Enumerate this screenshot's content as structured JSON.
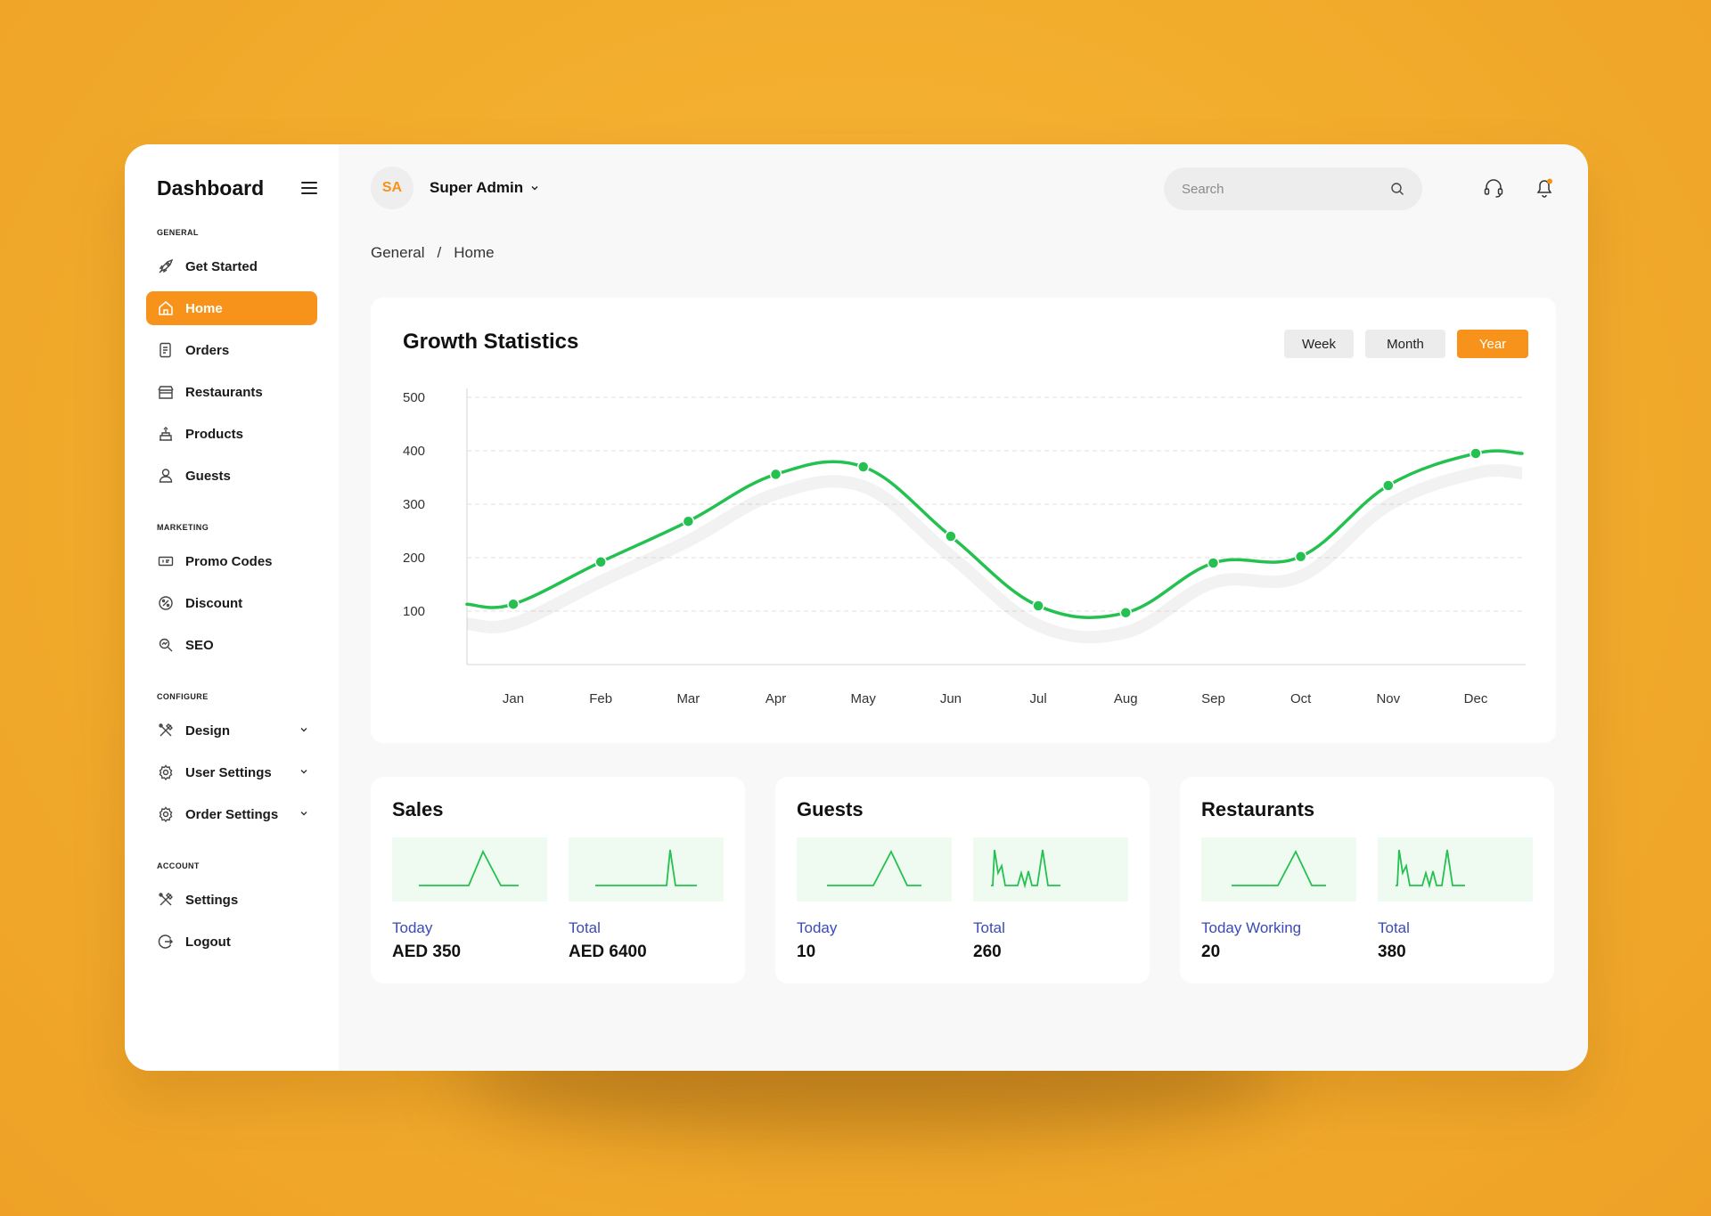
{
  "sidebar": {
    "title": "Dashboard",
    "sections": [
      {
        "label": "GENERAL",
        "items": [
          {
            "label": "Get Started",
            "icon": "rocket-icon"
          },
          {
            "label": "Home",
            "icon": "home-icon",
            "active": true
          },
          {
            "label": "Orders",
            "icon": "orders-icon"
          },
          {
            "label": "Restaurants",
            "icon": "store-icon"
          },
          {
            "label": "Products",
            "icon": "cake-icon"
          },
          {
            "label": "Guests",
            "icon": "user-icon"
          }
        ]
      },
      {
        "label": "MARKETING",
        "items": [
          {
            "label": "Promo Codes",
            "icon": "ticket-icon"
          },
          {
            "label": "Discount",
            "icon": "percent-icon"
          },
          {
            "label": "SEO",
            "icon": "seo-icon"
          }
        ]
      },
      {
        "label": "CONFIGURE",
        "items": [
          {
            "label": "Design",
            "icon": "tools-icon"
          },
          {
            "label": "User Settings",
            "icon": "gear-icon"
          },
          {
            "label": "Order Settings",
            "icon": "gear-icon"
          }
        ]
      },
      {
        "label": "ACCOUNT",
        "items": [
          {
            "label": "Settings",
            "icon": "tools-icon"
          },
          {
            "label": "Logout",
            "icon": "logout-icon"
          }
        ]
      }
    ]
  },
  "header": {
    "avatar_initials": "SA",
    "user_name": "Super Admin",
    "search_placeholder": "Search"
  },
  "breadcrumb": {
    "parent": "General",
    "separator": "/",
    "current": "Home"
  },
  "growth": {
    "title": "Growth Statistics",
    "periods": [
      "Week",
      "Month",
      "Year"
    ],
    "selected_period": "Year"
  },
  "chart_data": {
    "type": "line",
    "title": "Growth Statistics",
    "categories": [
      "Jan",
      "Feb",
      "Mar",
      "Apr",
      "May",
      "Jun",
      "Jul",
      "Aug",
      "Sep",
      "Oct",
      "Nov",
      "Dec"
    ],
    "values": [
      113,
      192,
      268,
      356,
      370,
      240,
      110,
      97,
      190,
      202,
      335,
      395
    ],
    "y_ticks": [
      100,
      200,
      300,
      400,
      500
    ],
    "ylim": [
      0,
      500
    ],
    "grid": "horizontal dashed",
    "line_color": "#24c150"
  },
  "stats": [
    {
      "title": "Sales",
      "left_label": "Today",
      "left_value": "AED 350",
      "right_label": "Total",
      "right_value": "AED 6400"
    },
    {
      "title": "Guests",
      "left_label": "Today",
      "left_value": "10",
      "right_label": "Total",
      "right_value": "260"
    },
    {
      "title": "Restaurants",
      "left_label": "Today Working",
      "left_value": "20",
      "right_label": "Total",
      "right_value": "380"
    }
  ],
  "colors": {
    "accent": "#f7931b",
    "line": "#24c150",
    "label_blue": "#3b4ab8",
    "background": "#f2ac2c"
  }
}
